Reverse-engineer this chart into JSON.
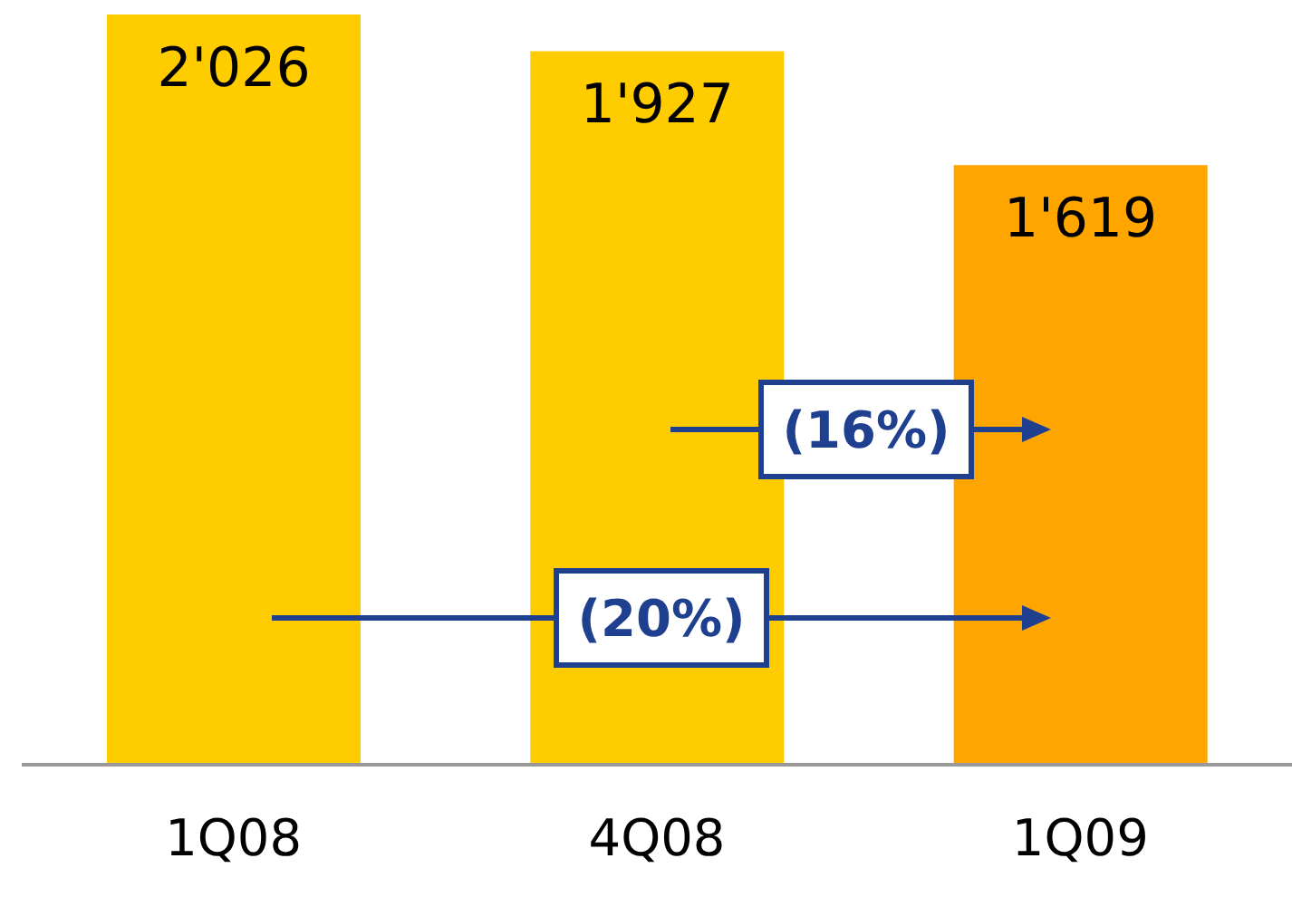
{
  "chart_data": {
    "type": "bar",
    "categories": [
      "1Q08",
      "4Q08",
      "1Q09"
    ],
    "values": [
      2026,
      1927,
      1619
    ],
    "colors": [
      "#ffcc00",
      "#ffcc00",
      "#ffa500"
    ],
    "value_labels": [
      "2'026",
      "1'927",
      "1'619"
    ],
    "annotations": [
      "(16%)",
      "(20%)"
    ]
  }
}
